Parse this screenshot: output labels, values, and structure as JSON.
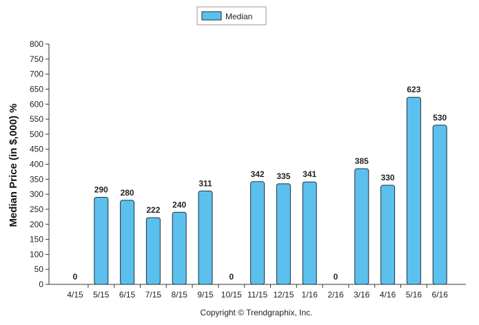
{
  "chart_data": {
    "type": "bar",
    "categories": [
      "4/15",
      "5/15",
      "6/15",
      "7/15",
      "8/15",
      "9/15",
      "10/15",
      "11/15",
      "12/15",
      "1/16",
      "2/16",
      "3/16",
      "4/16",
      "5/16",
      "6/16"
    ],
    "series": [
      {
        "name": "Median",
        "values": [
          0,
          290,
          280,
          222,
          240,
          311,
          0,
          342,
          335,
          341,
          0,
          385,
          330,
          623,
          530
        ],
        "color": "#5bc0ee"
      }
    ],
    "ylabel": "Median Price (in $,000) %",
    "xlabel": "",
    "ylim": [
      0,
      800
    ],
    "yticks": [
      0,
      50,
      100,
      150,
      200,
      250,
      300,
      350,
      400,
      450,
      500,
      550,
      600,
      650,
      700,
      750,
      800
    ],
    "grid": false,
    "legend_position": "top-center",
    "data_labels": true
  },
  "footer": {
    "copyright": "Copyright © Trendgraphix, Inc."
  },
  "colors": {
    "bar_fill": "#5bc0ee",
    "bar_stroke": "#1f2f3a",
    "axis": "#333333"
  }
}
